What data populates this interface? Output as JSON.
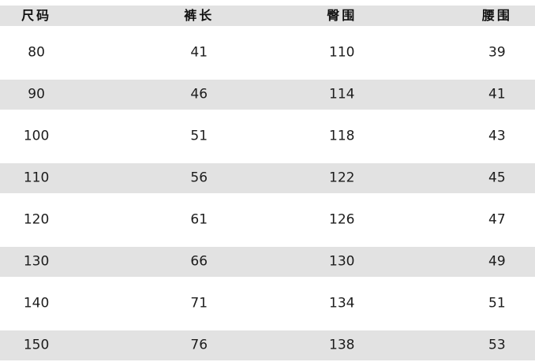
{
  "chart_data": {
    "type": "table",
    "columns": [
      "尺码",
      "裤长",
      "臀围",
      "腰围"
    ],
    "rows": [
      [
        "80",
        "41",
        "110",
        "39"
      ],
      [
        "90",
        "46",
        "114",
        "41"
      ],
      [
        "100",
        "51",
        "118",
        "43"
      ],
      [
        "110",
        "56",
        "122",
        "45"
      ],
      [
        "120",
        "61",
        "126",
        "47"
      ],
      [
        "130",
        "66",
        "130",
        "49"
      ],
      [
        "140",
        "71",
        "134",
        "51"
      ],
      [
        "150",
        "76",
        "138",
        "53"
      ]
    ],
    "layout": {
      "stripe_pattern": "header gray, then alternating white/gray data rows",
      "column_alignment": "center"
    }
  },
  "colors": {
    "stripe": "#e2e2e2",
    "background": "#ffffff",
    "text": "#1c1c1c"
  }
}
